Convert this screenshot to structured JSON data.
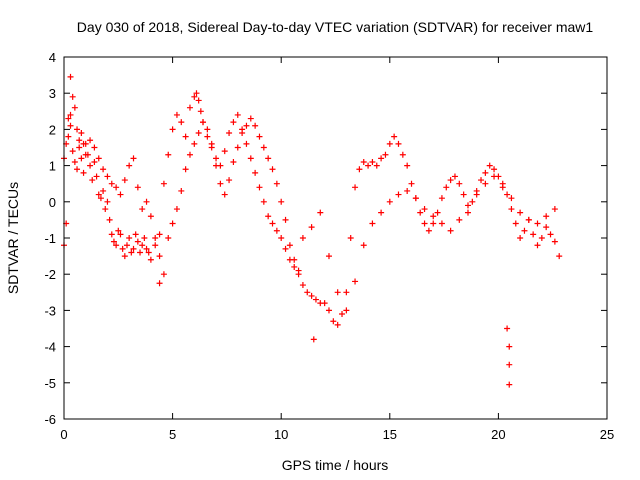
{
  "chart_data": {
    "type": "scatter",
    "title": "Day 030 of 2018, Sidereal Day-to-day VTEC variation (SDTVAR) for receiver maw1",
    "xlabel": "GPS time / hours",
    "ylabel": "SDTVAR / TECUs",
    "xlim": [
      0,
      25
    ],
    "ylim": [
      -6,
      4
    ],
    "xticks": [
      "0",
      "5",
      "10",
      "15",
      "20",
      "25"
    ],
    "yticks": [
      "-6",
      "-5",
      "-4",
      "-3",
      "-2",
      "-1",
      "0",
      "1",
      "2",
      "3",
      "4"
    ],
    "marker": "+",
    "marker_color": "#ff0000",
    "grid": false,
    "series": [
      {
        "name": "SDTVAR",
        "x": [
          0.0,
          0.1,
          0.2,
          0.3,
          0.4,
          0.5,
          0.6,
          0.7,
          0.8,
          0.9,
          1.0,
          1.1,
          1.2,
          1.3,
          1.4,
          1.5,
          1.6,
          1.7,
          1.8,
          1.9,
          2.0,
          2.1,
          2.2,
          2.3,
          2.4,
          2.5,
          2.6,
          2.7,
          2.8,
          2.9,
          3.0,
          3.1,
          3.2,
          3.3,
          3.4,
          3.5,
          3.6,
          3.7,
          3.8,
          3.9,
          4.0,
          4.2,
          4.4,
          4.6,
          4.8,
          5.0,
          5.2,
          5.4,
          5.6,
          5.8,
          6.0,
          6.1,
          6.2,
          6.3,
          6.4,
          6.6,
          6.8,
          7.0,
          7.2,
          7.4,
          7.6,
          7.8,
          8.0,
          8.2,
          8.4,
          8.6,
          8.8,
          9.0,
          9.2,
          9.4,
          9.6,
          9.8,
          10.0,
          10.2,
          10.4,
          10.6,
          10.8,
          11.0,
          11.2,
          11.4,
          11.6,
          11.8,
          12.0,
          12.2,
          12.4,
          12.6,
          12.8,
          13.0,
          13.2,
          13.4,
          13.6,
          13.8,
          14.0,
          14.2,
          14.4,
          14.6,
          14.8,
          15.0,
          15.2,
          15.4,
          15.6,
          15.8,
          16.0,
          16.2,
          16.4,
          16.6,
          16.8,
          17.0,
          17.2,
          17.4,
          17.6,
          17.8,
          18.0,
          18.2,
          18.4,
          18.6,
          18.8,
          19.0,
          19.2,
          19.4,
          19.6,
          19.8,
          20.0,
          20.2,
          20.4,
          20.6,
          20.8,
          21.0,
          21.2,
          21.4,
          21.6,
          21.8,
          22.0,
          22.2,
          22.4,
          22.6,
          22.8,
          0.0,
          0.1,
          0.2,
          0.3,
          0.4,
          0.5,
          0.6,
          0.7,
          0.8,
          0.9,
          1.0,
          1.2,
          1.4,
          1.6,
          1.8,
          2.0,
          2.2,
          2.4,
          2.6,
          2.8,
          3.0,
          3.2,
          3.4,
          3.6,
          3.8,
          4.0,
          4.2,
          4.4,
          4.6,
          4.8,
          5.0,
          5.2,
          5.4,
          5.6,
          5.8,
          6.0,
          6.2,
          6.4,
          6.6,
          6.8,
          7.0,
          7.2,
          7.4,
          7.6,
          7.8,
          8.0,
          8.2,
          8.4,
          8.6,
          8.8,
          9.0,
          9.2,
          9.4,
          9.6,
          9.8,
          10.0,
          10.2,
          10.4,
          10.6,
          10.8,
          11.0,
          11.4,
          11.8,
          12.2,
          12.6,
          13.0,
          13.4,
          13.8,
          14.2,
          14.6,
          15.0,
          15.4,
          15.8,
          16.2,
          16.6,
          17.0,
          17.4,
          17.8,
          18.2,
          18.6,
          19.0,
          19.4,
          19.8,
          20.2,
          20.6,
          21.0,
          21.4,
          21.8,
          22.2,
          22.6,
          0.3,
          20.4,
          20.5,
          20.5,
          20.5,
          11.5,
          4.4
        ],
        "y": [
          1.2,
          1.6,
          2.3,
          2.1,
          1.4,
          1.1,
          0.9,
          1.5,
          1.2,
          0.8,
          1.6,
          1.3,
          1.0,
          0.6,
          1.1,
          0.7,
          0.2,
          0.1,
          0.3,
          -0.2,
          0.0,
          -0.5,
          -0.9,
          -1.1,
          -1.2,
          -0.8,
          -0.9,
          -1.3,
          -1.5,
          -1.2,
          -1.0,
          -1.4,
          -1.3,
          -0.9,
          -1.1,
          -1.4,
          -1.2,
          -1.0,
          -1.3,
          -1.4,
          -1.6,
          -1.2,
          -0.9,
          0.5,
          1.3,
          2.0,
          2.4,
          2.2,
          1.8,
          2.6,
          2.9,
          3.0,
          2.8,
          2.5,
          2.2,
          1.8,
          1.6,
          1.2,
          1.0,
          1.4,
          1.9,
          2.2,
          2.4,
          2.0,
          1.6,
          1.2,
          0.8,
          0.4,
          0.0,
          -0.4,
          -0.6,
          -0.8,
          -1.0,
          -1.3,
          -1.6,
          -1.8,
          -2.0,
          -2.3,
          -2.5,
          -2.6,
          -2.7,
          -2.8,
          -2.8,
          -3.0,
          -3.3,
          -3.4,
          -3.1,
          -2.5,
          -1.0,
          0.4,
          0.9,
          1.1,
          1.0,
          1.1,
          1.0,
          1.2,
          1.3,
          1.6,
          1.8,
          1.6,
          1.3,
          1.0,
          0.5,
          0.1,
          -0.3,
          -0.6,
          -0.8,
          -0.6,
          -0.3,
          0.1,
          0.4,
          0.6,
          0.7,
          0.5,
          0.2,
          -0.1,
          0.0,
          0.3,
          0.6,
          0.8,
          1.0,
          0.9,
          0.7,
          0.5,
          0.2,
          -0.2,
          -0.6,
          -1.0,
          -0.8,
          -0.5,
          -0.9,
          -1.2,
          -1.0,
          -0.7,
          -0.9,
          -1.1,
          -1.5,
          -1.2,
          -0.6,
          1.8,
          2.4,
          2.9,
          2.6,
          2.0,
          1.7,
          1.9,
          1.6,
          1.3,
          1.7,
          1.5,
          1.2,
          0.9,
          0.7,
          0.5,
          0.4,
          0.2,
          0.6,
          1.0,
          1.2,
          0.4,
          -0.2,
          0.0,
          -0.4,
          -1.0,
          -1.5,
          -2.0,
          -1.0,
          -0.6,
          -0.2,
          0.3,
          0.9,
          1.3,
          1.6,
          1.9,
          2.2,
          2.0,
          1.5,
          1.0,
          0.5,
          0.2,
          0.6,
          1.1,
          1.5,
          1.9,
          2.1,
          2.3,
          2.1,
          1.8,
          1.5,
          1.2,
          0.9,
          0.5,
          0.0,
          -0.5,
          -1.2,
          -1.6,
          -1.9,
          -1.0,
          -0.7,
          -0.3,
          -1.5,
          -2.5,
          -3.0,
          -2.2,
          -1.2,
          -0.6,
          -0.3,
          0.0,
          0.2,
          0.3,
          0.1,
          -0.2,
          -0.4,
          -0.6,
          -0.8,
          -0.5,
          -0.3,
          0.2,
          0.5,
          0.7,
          0.4,
          0.1,
          -0.3,
          -0.5,
          -0.6,
          -0.4,
          -0.2,
          3.45,
          -3.5,
          -4.0,
          -4.5,
          -5.05,
          -3.8,
          -2.25
        ]
      }
    ]
  }
}
